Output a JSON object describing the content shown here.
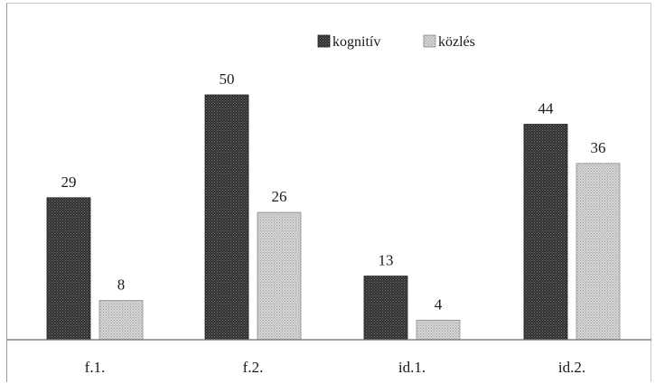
{
  "chart_data": {
    "type": "bar",
    "categories": [
      "f.1.",
      "f.2.",
      "id.1.",
      "id.2."
    ],
    "series": [
      {
        "name": "kognitív",
        "values": [
          29,
          50,
          13,
          44
        ],
        "color": "#3a3a3a",
        "pattern": "dark-checker"
      },
      {
        "name": "közlés",
        "values": [
          8,
          26,
          4,
          36
        ],
        "color": "#c8c8c8",
        "pattern": "light-checker"
      }
    ],
    "title": "",
    "xlabel": "",
    "ylabel": "",
    "ylim": [
      0,
      60
    ],
    "grid": false,
    "legend": "top-center",
    "data_labels": true
  }
}
